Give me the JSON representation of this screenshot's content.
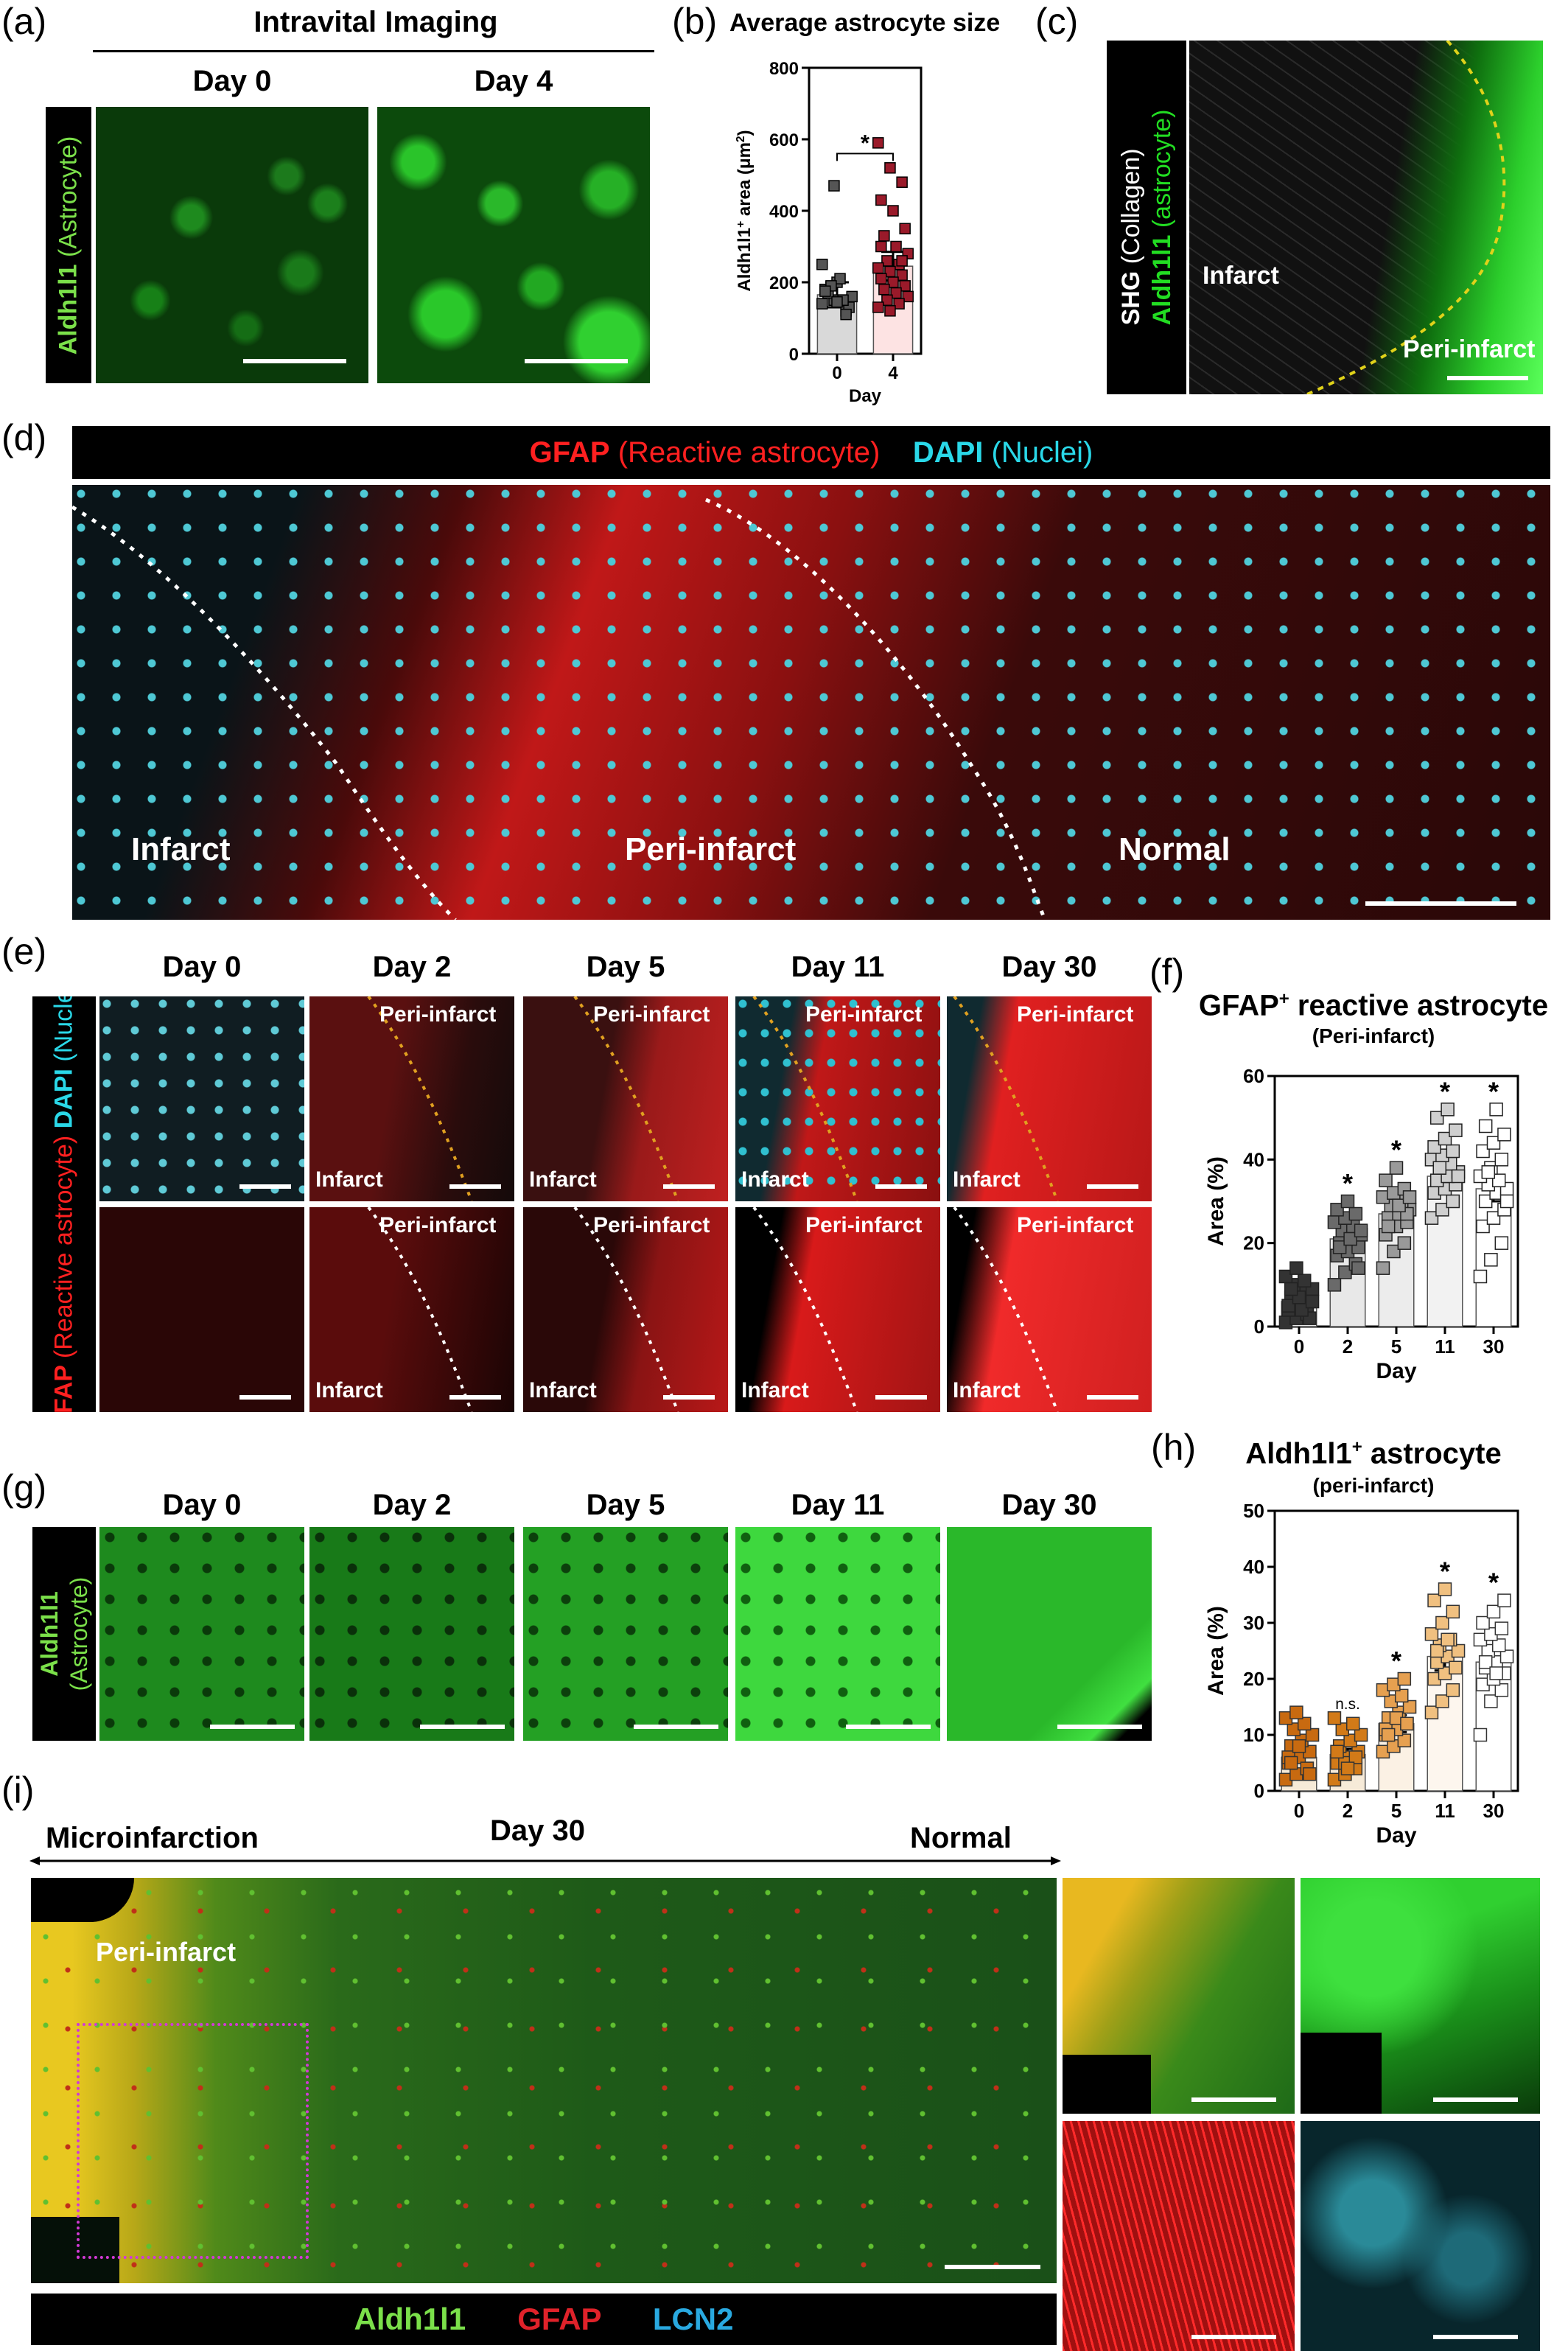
{
  "panels": {
    "a": {
      "label": "(a)",
      "title": "Intravital Imaging",
      "side_marker": "Aldh1l1",
      "side_desc": "(Astrocyte)",
      "days": [
        "Day 0",
        "Day 4"
      ]
    },
    "b": {
      "label": "(b)",
      "title": "Average astrocyte size"
    },
    "c": {
      "label": "(c)",
      "side_marker1": "SHG",
      "side_desc1": "(Collagen)",
      "side_marker2": "Aldh1l1",
      "side_desc2": "(astrocyte)",
      "region_infarct": "Infarct",
      "region_peri": "Peri-infarct"
    },
    "d": {
      "label": "(d)",
      "header_marker1": "GFAP",
      "header_desc1": "(Reactive astrocyte)",
      "header_marker2": "DAPI",
      "header_desc2": "(Nuclei)",
      "region_infarct": "Infarct",
      "region_peri": "Peri-infarct",
      "region_normal": "Normal"
    },
    "e": {
      "label": "(e)",
      "side_marker1": "GFAP",
      "side_desc1": "(Reactive astrocyte)",
      "side_marker2": "DAPI",
      "side_desc2": "(Nuclei)",
      "days": [
        "Day 0",
        "Day 2",
        "Day 5",
        "Day 11",
        "Day 30"
      ],
      "peri": "Peri-infarct",
      "infarct": "Infarct"
    },
    "f": {
      "label": "(f)",
      "title": "GFAP",
      "title_sup": "+",
      "title_rest": " reactive astrocyte",
      "subtitle": "(Peri-infarct)"
    },
    "g": {
      "label": "(g)",
      "side_marker": "Aldh1l1",
      "side_desc": "(Astrocyte)",
      "days": [
        "Day 0",
        "Day 2",
        "Day 5",
        "Day 11",
        "Day 30"
      ]
    },
    "h": {
      "label": "(h)",
      "title": "Aldh1l1",
      "title_sup": "+",
      "title_rest": " astrocyte",
      "subtitle": "(peri-infarct)"
    },
    "i": {
      "label": "(i)",
      "left_label": "Microinfarction",
      "center_label": "Day 30",
      "right_label": "Normal",
      "peri": "Peri-infarct",
      "legend1": "Aldh1l1",
      "legend2": "GFAP",
      "legend3": "LCN2"
    }
  },
  "colors": {
    "green": "#22dd22",
    "red": "#ff2020",
    "cyan": "#2ad8e8",
    "legend_green": "#7be04a",
    "legend_red": "#e0222a",
    "legend_cyan": "#29a9e0",
    "grey_bar": "#d9d9d9",
    "pink_bar": "#fde3e3",
    "orange_marker": "#d4801e",
    "yellow_dotted": "#e0d21a",
    "magenta_dotted": "#d23ad6"
  },
  "chart_data": [
    {
      "id": "b",
      "type": "bar",
      "ylabel": "Aldh1l1",
      "ylabel_sup": "+",
      "ylabel_rest": " area (μm",
      "ylabel_sup2": "2",
      "ylabel_end": ")",
      "xlabel": "Day",
      "categories": [
        "0",
        "4"
      ],
      "values": [
        165,
        245
      ],
      "errors": [
        35,
        40
      ],
      "ylim": [
        0,
        800
      ],
      "yticks": [
        "0",
        "200",
        "400",
        "600",
        "800"
      ],
      "significance": "*",
      "points": [
        [
          140,
          150,
          120,
          180,
          200,
          130,
          170,
          210,
          160,
          190,
          150,
          250,
          470,
          110,
          175,
          145
        ],
        [
          590,
          520,
          480,
          430,
          400,
          350,
          330,
          300,
          280,
          260,
          250,
          240,
          230,
          220,
          210,
          200,
          190,
          180,
          170,
          160,
          150,
          140,
          130,
          120,
          260,
          300
        ]
      ]
    },
    {
      "id": "f",
      "type": "bar",
      "ylabel": "Area (%)",
      "xlabel": "Day",
      "categories": [
        "0",
        "2",
        "5",
        "11",
        "30"
      ],
      "values": [
        6,
        21,
        27,
        36,
        33
      ],
      "errors": [
        1.5,
        2,
        2,
        3,
        3
      ],
      "ylim": [
        0,
        60
      ],
      "yticks": [
        "0",
        "20",
        "40",
        "60"
      ],
      "significance": [
        "",
        "*",
        "*",
        "*",
        "*"
      ],
      "points": [
        [
          1,
          2,
          3,
          4,
          5,
          6,
          7,
          8,
          9,
          10,
          11,
          12,
          14,
          3,
          5,
          7,
          2,
          9,
          4,
          6
        ],
        [
          10,
          13,
          15,
          17,
          18,
          19,
          20,
          21,
          22,
          23,
          24,
          25,
          26,
          27,
          28,
          30,
          14,
          19,
          21,
          23
        ],
        [
          14,
          18,
          20,
          22,
          24,
          25,
          26,
          27,
          28,
          29,
          30,
          31,
          32,
          33,
          35,
          38,
          27,
          24,
          29,
          31
        ],
        [
          26,
          28,
          30,
          32,
          33,
          34,
          35,
          36,
          37,
          38,
          39,
          40,
          41,
          42,
          43,
          45,
          47,
          50,
          52,
          36,
          38
        ],
        [
          12,
          16,
          20,
          24,
          26,
          28,
          30,
          32,
          33,
          34,
          35,
          36,
          38,
          40,
          42,
          44,
          46,
          48,
          52,
          30,
          37
        ]
      ]
    },
    {
      "id": "h",
      "type": "bar",
      "ylabel": "Area (%)",
      "xlabel": "Day",
      "categories": [
        "0",
        "2",
        "5",
        "11",
        "30"
      ],
      "values": [
        6,
        6.5,
        12,
        24,
        23
      ],
      "errors": [
        1,
        1,
        1.5,
        2.5,
        2
      ],
      "ylim": [
        0,
        50
      ],
      "yticks": [
        "0",
        "10",
        "20",
        "30",
        "40",
        "50"
      ],
      "significance": [
        "",
        "n.s.",
        "*",
        "*",
        "*"
      ],
      "points": [
        [
          2,
          3,
          4,
          5,
          6,
          7,
          8,
          9,
          10,
          11,
          12,
          13,
          14,
          4,
          6,
          8,
          3,
          5
        ],
        [
          2,
          3,
          4,
          5,
          6,
          7,
          8,
          9,
          10,
          11,
          12,
          13,
          5,
          6,
          7,
          4
        ],
        [
          7,
          8,
          9,
          10,
          11,
          12,
          13,
          14,
          15,
          16,
          17,
          18,
          19,
          20,
          11,
          13,
          12,
          10
        ],
        [
          14,
          16,
          18,
          20,
          21,
          22,
          23,
          24,
          25,
          26,
          27,
          28,
          30,
          32,
          34,
          36,
          22,
          25,
          27
        ],
        [
          10,
          16,
          18,
          19,
          20,
          21,
          22,
          23,
          24,
          25,
          26,
          27,
          28,
          29,
          30,
          32,
          34,
          23,
          21
        ]
      ]
    }
  ]
}
